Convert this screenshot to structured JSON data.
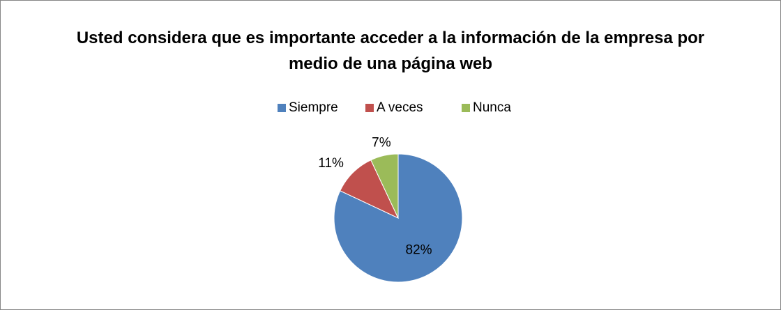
{
  "chart_data": {
    "type": "pie",
    "title": "Usted considera que es importante acceder a la información de la empresa por medio de una página web",
    "categories": [
      "Siempre",
      "A veces",
      "Nunca"
    ],
    "values": [
      82,
      11,
      7
    ],
    "value_labels": [
      "82%",
      "11%",
      "7%"
    ],
    "colors": [
      "#4f81bd",
      "#c0504d",
      "#9bbb59"
    ],
    "legend": "top"
  }
}
